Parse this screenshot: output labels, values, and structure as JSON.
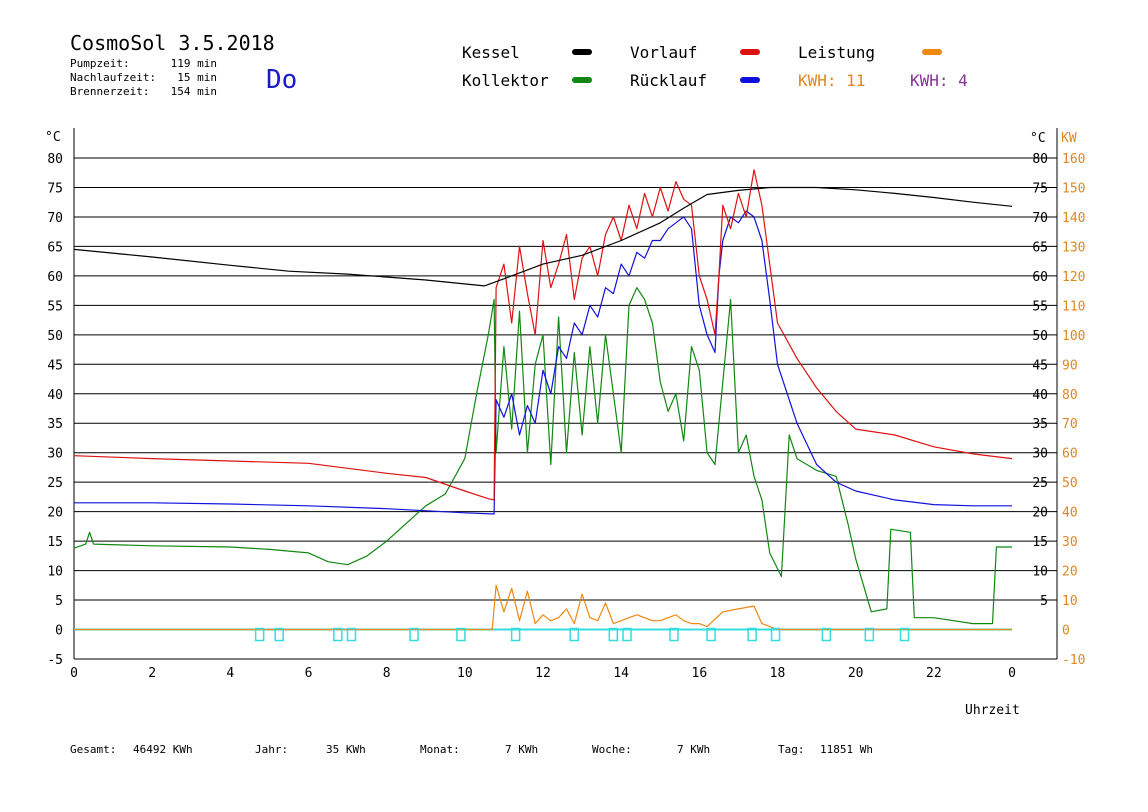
{
  "header": {
    "title": "CosmoSol 3.5.2018",
    "day": "Do",
    "info": [
      {
        "label": "Pumpzeit:",
        "value": "119 min"
      },
      {
        "label": "Nachlaufzeit:",
        "value": "15 min"
      },
      {
        "label": "Brennerzeit:",
        "value": "154 min"
      }
    ]
  },
  "legend": {
    "items": [
      {
        "label": "Kessel",
        "color": "#000000"
      },
      {
        "label": "Vorlauf",
        "color": "#dd1111"
      },
      {
        "label": "Leistung",
        "color": "#ee8811"
      },
      {
        "label": "Kollektor",
        "color": "#118811"
      },
      {
        "label": "Rücklauf",
        "color": "#1111dd"
      }
    ],
    "kwh_orange": "KWH: 11",
    "kwh_purple": "KWH: 4",
    "kwh_orange_color": "#dd8822",
    "kwh_purple_color": "#883399"
  },
  "axis": {
    "left_unit": "°C",
    "right_unit": "°C",
    "kw_unit": "KW",
    "x_label": "Uhrzeit",
    "left_ticks": [
      "-5",
      "0",
      "5",
      "10",
      "15",
      "20",
      "25",
      "30",
      "35",
      "40",
      "45",
      "50",
      "55",
      "60",
      "65",
      "70",
      "75",
      "80"
    ],
    "right_ticks": [
      "5",
      "10",
      "15",
      "20",
      "25",
      "30",
      "35",
      "40",
      "45",
      "50",
      "55",
      "60",
      "65",
      "70",
      "75",
      "80"
    ],
    "kw_ticks": [
      "-10",
      "0",
      "10",
      "20",
      "30",
      "40",
      "50",
      "60",
      "70",
      "80",
      "90",
      "100",
      "110",
      "120",
      "130",
      "140",
      "150",
      "160"
    ],
    "x_ticks": [
      "0",
      "2",
      "4",
      "6",
      "8",
      "10",
      "12",
      "14",
      "16",
      "18",
      "20",
      "22",
      "0"
    ]
  },
  "footer": [
    {
      "label": "Gesamt:",
      "value": "46492 KWh"
    },
    {
      "label": "Jahr:",
      "value": "35 KWh"
    },
    {
      "label": "Monat:",
      "value": "7 KWh"
    },
    {
      "label": "Woche:",
      "value": "7 KWh"
    },
    {
      "label": "Tag:",
      "value": "11851 Wh"
    }
  ],
  "chart_data": {
    "type": "line",
    "xlabel": "Uhrzeit",
    "ylabel": "°C",
    "y2label": "KW",
    "xlim": [
      0,
      24
    ],
    "ylim": [
      -5,
      80
    ],
    "y2lim": [
      -10,
      160
    ],
    "grid": true,
    "legend_position": "top",
    "series": [
      {
        "name": "Kessel",
        "color": "#000000",
        "points": [
          [
            0,
            64.5
          ],
          [
            2,
            63.2
          ],
          [
            4,
            61.8
          ],
          [
            5.5,
            60.8
          ],
          [
            7,
            60.3
          ],
          [
            9,
            59.3
          ],
          [
            10.5,
            58.3
          ],
          [
            11,
            59.5
          ],
          [
            12,
            62
          ],
          [
            13,
            63.5
          ],
          [
            14,
            66
          ],
          [
            15,
            69
          ],
          [
            15.6,
            71.5
          ],
          [
            16.2,
            73.8
          ],
          [
            17,
            74.5
          ],
          [
            17.8,
            75
          ],
          [
            19,
            75
          ],
          [
            20,
            74.6
          ],
          [
            21,
            74
          ],
          [
            22,
            73.3
          ],
          [
            23,
            72.5
          ],
          [
            24,
            71.8
          ]
        ]
      },
      {
        "name": "Vorlauf",
        "color": "#dd1111",
        "points": [
          [
            0,
            29.5
          ],
          [
            2,
            29
          ],
          [
            4,
            28.6
          ],
          [
            6,
            28.2
          ],
          [
            8,
            26.5
          ],
          [
            9,
            25.8
          ],
          [
            10,
            23.5
          ],
          [
            10.6,
            22.2
          ],
          [
            10.75,
            22
          ],
          [
            10.8,
            58
          ],
          [
            11,
            62
          ],
          [
            11.2,
            52
          ],
          [
            11.4,
            65
          ],
          [
            11.6,
            57
          ],
          [
            11.8,
            50
          ],
          [
            12,
            66
          ],
          [
            12.2,
            58
          ],
          [
            12.4,
            62
          ],
          [
            12.6,
            67
          ],
          [
            12.8,
            56
          ],
          [
            13,
            63
          ],
          [
            13.2,
            65
          ],
          [
            13.4,
            60
          ],
          [
            13.6,
            67
          ],
          [
            13.8,
            70
          ],
          [
            14,
            66
          ],
          [
            14.2,
            72
          ],
          [
            14.4,
            68
          ],
          [
            14.6,
            74
          ],
          [
            14.8,
            70
          ],
          [
            15,
            75
          ],
          [
            15.2,
            71
          ],
          [
            15.4,
            76
          ],
          [
            15.6,
            73
          ],
          [
            15.8,
            72
          ],
          [
            16,
            60
          ],
          [
            16.2,
            56
          ],
          [
            16.4,
            50
          ],
          [
            16.5,
            60
          ],
          [
            16.6,
            72
          ],
          [
            16.8,
            68
          ],
          [
            17,
            74
          ],
          [
            17.2,
            70
          ],
          [
            17.4,
            78
          ],
          [
            17.6,
            72
          ],
          [
            17.8,
            62
          ],
          [
            18,
            52
          ],
          [
            18.5,
            46
          ],
          [
            19,
            41
          ],
          [
            19.5,
            37
          ],
          [
            20,
            34
          ],
          [
            21,
            33
          ],
          [
            22,
            31
          ],
          [
            23,
            29.8
          ],
          [
            24,
            29
          ]
        ]
      },
      {
        "name": "Rücklauf",
        "color": "#1111dd",
        "points": [
          [
            0,
            21.5
          ],
          [
            2,
            21.5
          ],
          [
            4,
            21.3
          ],
          [
            6,
            21
          ],
          [
            8,
            20.5
          ],
          [
            10,
            19.8
          ],
          [
            10.75,
            19.6
          ],
          [
            10.8,
            39
          ],
          [
            11,
            36
          ],
          [
            11.2,
            40
          ],
          [
            11.4,
            33
          ],
          [
            11.6,
            38
          ],
          [
            11.8,
            35
          ],
          [
            12,
            44
          ],
          [
            12.2,
            40
          ],
          [
            12.4,
            48
          ],
          [
            12.6,
            46
          ],
          [
            12.8,
            52
          ],
          [
            13,
            50
          ],
          [
            13.2,
            55
          ],
          [
            13.4,
            53
          ],
          [
            13.6,
            58
          ],
          [
            13.8,
            57
          ],
          [
            14,
            62
          ],
          [
            14.2,
            60
          ],
          [
            14.4,
            64
          ],
          [
            14.6,
            63
          ],
          [
            14.8,
            66
          ],
          [
            15,
            66
          ],
          [
            15.2,
            68
          ],
          [
            15.4,
            69
          ],
          [
            15.6,
            70
          ],
          [
            15.8,
            68
          ],
          [
            16,
            55
          ],
          [
            16.2,
            50
          ],
          [
            16.4,
            47
          ],
          [
            16.5,
            60
          ],
          [
            16.6,
            66
          ],
          [
            16.8,
            70
          ],
          [
            17,
            69
          ],
          [
            17.2,
            71
          ],
          [
            17.4,
            70
          ],
          [
            17.6,
            66
          ],
          [
            17.8,
            56
          ],
          [
            18,
            45
          ],
          [
            18.5,
            35
          ],
          [
            19,
            28
          ],
          [
            19.5,
            25
          ],
          [
            20,
            23.5
          ],
          [
            21,
            22
          ],
          [
            22,
            21.2
          ],
          [
            23,
            21
          ],
          [
            24,
            21
          ]
        ]
      },
      {
        "name": "Kollektor",
        "color": "#118811",
        "points": [
          [
            0,
            13.8
          ],
          [
            0.3,
            14.5
          ],
          [
            0.4,
            16.5
          ],
          [
            0.5,
            14.5
          ],
          [
            2,
            14.2
          ],
          [
            4,
            14
          ],
          [
            5,
            13.6
          ],
          [
            6,
            13
          ],
          [
            6.5,
            11.5
          ],
          [
            7,
            11
          ],
          [
            7.5,
            12.5
          ],
          [
            8,
            15
          ],
          [
            8.5,
            18
          ],
          [
            9,
            21
          ],
          [
            9.5,
            23
          ],
          [
            10,
            29
          ],
          [
            10.3,
            40
          ],
          [
            10.6,
            50
          ],
          [
            10.75,
            56
          ],
          [
            10.8,
            30
          ],
          [
            11,
            48
          ],
          [
            11.2,
            34
          ],
          [
            11.4,
            54
          ],
          [
            11.6,
            30
          ],
          [
            11.8,
            45
          ],
          [
            12,
            50
          ],
          [
            12.2,
            28
          ],
          [
            12.4,
            53
          ],
          [
            12.6,
            30
          ],
          [
            12.8,
            47
          ],
          [
            13,
            33
          ],
          [
            13.2,
            48
          ],
          [
            13.4,
            35
          ],
          [
            13.6,
            50
          ],
          [
            13.8,
            40
          ],
          [
            14,
            30
          ],
          [
            14.2,
            55
          ],
          [
            14.4,
            58
          ],
          [
            14.6,
            56
          ],
          [
            14.8,
            52
          ],
          [
            15,
            42
          ],
          [
            15.2,
            37
          ],
          [
            15.4,
            40
          ],
          [
            15.6,
            32
          ],
          [
            15.8,
            48
          ],
          [
            16,
            44
          ],
          [
            16.2,
            30
          ],
          [
            16.4,
            28
          ],
          [
            16.6,
            42
          ],
          [
            16.8,
            56
          ],
          [
            17,
            30
          ],
          [
            17.2,
            33
          ],
          [
            17.4,
            26
          ],
          [
            17.6,
            22
          ],
          [
            17.8,
            13
          ],
          [
            18.1,
            9
          ],
          [
            18.3,
            33
          ],
          [
            18.5,
            29
          ],
          [
            19,
            27
          ],
          [
            19.5,
            26
          ],
          [
            19.8,
            18
          ],
          [
            20,
            12
          ],
          [
            20.4,
            3
          ],
          [
            20.8,
            3.5
          ],
          [
            20.9,
            17
          ],
          [
            21.4,
            16.5
          ],
          [
            21.5,
            2
          ],
          [
            22,
            2
          ],
          [
            23,
            1
          ],
          [
            23.5,
            1
          ],
          [
            23.6,
            14
          ],
          [
            24,
            14
          ]
        ]
      },
      {
        "name": "Leistung",
        "color": "#ee8811",
        "points": [
          [
            0,
            0
          ],
          [
            10.7,
            0
          ],
          [
            10.8,
            15
          ],
          [
            11,
            6
          ],
          [
            11.2,
            14
          ],
          [
            11.4,
            3
          ],
          [
            11.6,
            13
          ],
          [
            11.8,
            2
          ],
          [
            12,
            5
          ],
          [
            12.2,
            3
          ],
          [
            12.4,
            4
          ],
          [
            12.6,
            7
          ],
          [
            12.8,
            2
          ],
          [
            13,
            12
          ],
          [
            13.2,
            4
          ],
          [
            13.4,
            3
          ],
          [
            13.6,
            9
          ],
          [
            13.8,
            2
          ],
          [
            14,
            3
          ],
          [
            14.2,
            4
          ],
          [
            14.4,
            5
          ],
          [
            14.6,
            4
          ],
          [
            14.8,
            3
          ],
          [
            15,
            3
          ],
          [
            15.2,
            4
          ],
          [
            15.4,
            5
          ],
          [
            15.6,
            3
          ],
          [
            15.8,
            2
          ],
          [
            16,
            2
          ],
          [
            16.2,
            1
          ],
          [
            16.6,
            6
          ],
          [
            17,
            7
          ],
          [
            17.4,
            8
          ],
          [
            17.6,
            2
          ],
          [
            18,
            0
          ],
          [
            24,
            0
          ]
        ]
      }
    ]
  }
}
